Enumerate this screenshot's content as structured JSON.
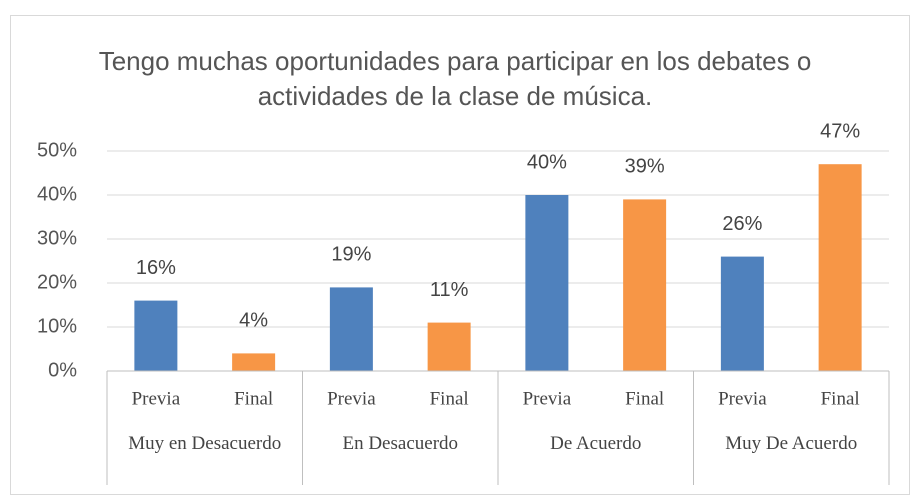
{
  "chart_data": {
    "type": "bar",
    "title": "Tengo muchas oportunidades para participar en los debates o actividades de la clase de música.",
    "categories": [
      "Previa",
      "Final",
      "Previa",
      "Final",
      "Previa",
      "Final",
      "Previa",
      "Final"
    ],
    "groups": [
      "Muy en Desacuerdo",
      "En Desacuerdo",
      "De Acuerdo",
      "Muy De Acuerdo"
    ],
    "values": [
      16,
      4,
      19,
      11,
      40,
      39,
      26,
      47
    ],
    "value_labels": [
      "16%",
      "4%",
      "19%",
      "11%",
      "40%",
      "39%",
      "26%",
      "47%"
    ],
    "colors": [
      "#4f81bd",
      "#f79646"
    ],
    "ylim": [
      0,
      50
    ],
    "yticks": [
      {
        "value": 0,
        "label": "0%"
      },
      {
        "value": 10,
        "label": "10%"
      },
      {
        "value": 20,
        "label": "20%"
      },
      {
        "value": 30,
        "label": "30%"
      },
      {
        "value": 40,
        "label": "40%"
      },
      {
        "value": 50,
        "label": "50%"
      }
    ],
    "grid": true
  }
}
